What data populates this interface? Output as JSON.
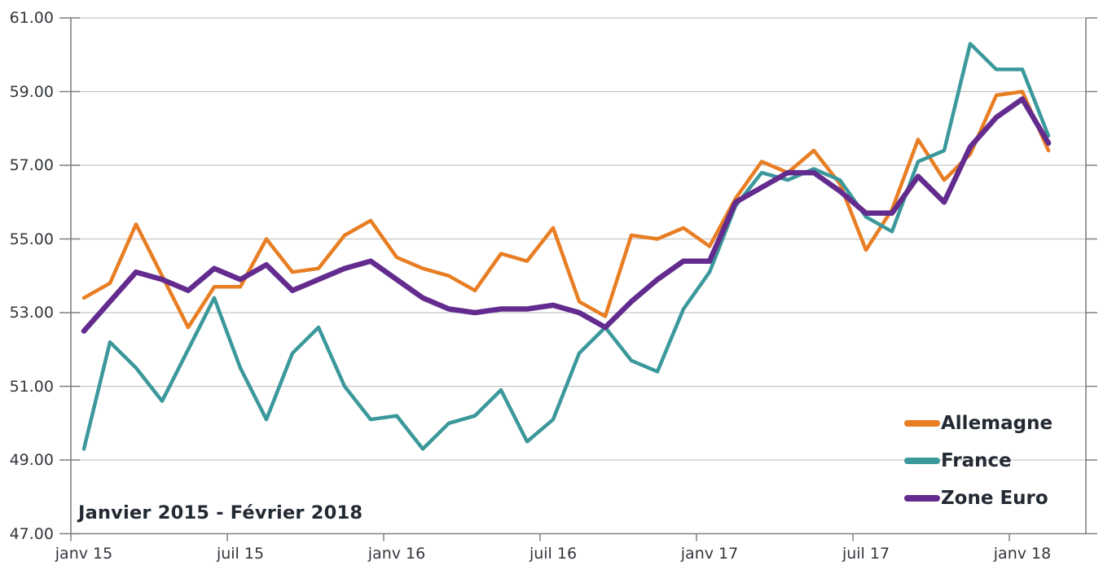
{
  "chart_data": {
    "type": "line",
    "title": "",
    "annotation": "Janvier 2015 - Février 2018",
    "categories": [
      "janv 15",
      "févr 15",
      "mars 15",
      "avr 15",
      "mai 15",
      "juin 15",
      "juil 15",
      "août 15",
      "sept 15",
      "oct 15",
      "nov 15",
      "déc 15",
      "janv 16",
      "févr 16",
      "mars 16",
      "avr 16",
      "mai 16",
      "juin 16",
      "juil 16",
      "août 16",
      "sept 16",
      "oct 16",
      "nov 16",
      "déc 16",
      "janv 17",
      "févr 17",
      "mars 17",
      "avr 17",
      "mai 17",
      "juin 17",
      "juil 17",
      "août 17",
      "sept 17",
      "oct 17",
      "nov 17",
      "déc 17",
      "janv 18",
      "févr 18"
    ],
    "x_tick_labels": [
      "janv 15",
      "juil 15",
      "janv 16",
      "juil 16",
      "janv 17",
      "juil 17",
      "janv 18"
    ],
    "x_tick_month_indices": [
      0,
      6,
      12,
      18,
      24,
      30,
      36
    ],
    "y_tick_labels": [
      "61.00",
      "59.00",
      "57.00",
      "55.00",
      "53.00",
      "51.00",
      "49.00",
      "47.00"
    ],
    "ylim": [
      47,
      61
    ],
    "y_step": 2,
    "grid": "horizontal",
    "legend_position": "inside-right",
    "series": [
      {
        "name": "Allemagne",
        "color": "#E87E23",
        "stroke_width": 4.5,
        "values": [
          53.4,
          53.8,
          55.4,
          54.0,
          52.6,
          53.7,
          53.7,
          55.0,
          54.1,
          54.2,
          55.1,
          55.5,
          54.5,
          54.2,
          54.0,
          53.6,
          54.6,
          54.4,
          55.3,
          53.3,
          52.9,
          55.1,
          55.0,
          55.3,
          54.8,
          56.1,
          57.1,
          56.8,
          57.4,
          56.5,
          54.7,
          55.8,
          57.7,
          56.6,
          57.3,
          58.9,
          59.0,
          57.4
        ]
      },
      {
        "name": "France",
        "color": "#3B989B",
        "stroke_width": 4.5,
        "values": [
          49.3,
          52.2,
          51.5,
          50.6,
          52.0,
          53.4,
          51.5,
          50.1,
          51.9,
          52.6,
          51.0,
          50.1,
          50.2,
          49.3,
          50.0,
          50.2,
          50.9,
          49.5,
          50.1,
          51.9,
          52.6,
          51.7,
          51.4,
          53.1,
          54.1,
          55.9,
          56.8,
          56.6,
          56.9,
          56.6,
          55.6,
          55.2,
          57.1,
          57.4,
          60.3,
          59.6,
          59.6,
          57.8
        ]
      },
      {
        "name": "Zone Euro",
        "color": "#632B8E",
        "stroke_width": 6.5,
        "values": [
          52.5,
          53.3,
          54.1,
          53.9,
          53.6,
          54.2,
          53.9,
          54.3,
          53.6,
          53.9,
          54.2,
          54.4,
          53.9,
          53.4,
          53.1,
          53.0,
          53.1,
          53.1,
          53.2,
          53.0,
          52.6,
          53.3,
          53.9,
          54.4,
          54.4,
          56.0,
          56.4,
          56.8,
          56.8,
          56.3,
          55.7,
          55.7,
          56.7,
          56.0,
          57.5,
          58.3,
          58.8,
          57.6
        ]
      }
    ],
    "colors": {
      "background": "#FFFFFF",
      "grid": "#C6C6C6",
      "axis": "#808080",
      "tick_text": "#32363C",
      "text": "#232A33"
    }
  }
}
